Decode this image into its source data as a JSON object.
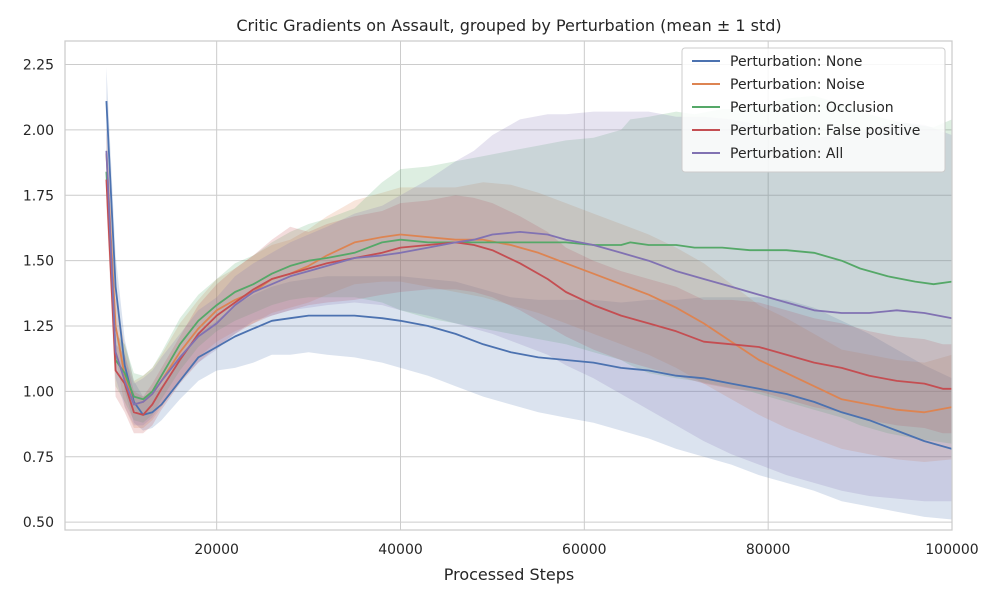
{
  "chart_data": {
    "type": "line",
    "title": "Critic Gradients on Assault, grouped by Perturbation (mean ± 1 std)",
    "xlabel": "Processed Steps",
    "ylabel": "",
    "xlim": [
      3500,
      100000
    ],
    "ylim": [
      0.47,
      2.34
    ],
    "xticks": [
      20000,
      40000,
      60000,
      80000,
      100000
    ],
    "yticks": [
      0.5,
      0.75,
      1.0,
      1.25,
      1.5,
      1.75,
      2.0,
      2.25
    ],
    "grid": true,
    "legend_position": "top-right",
    "series": [
      {
        "name": "Perturbation: None",
        "color": "#4c72b0",
        "x": [
          8000,
          9000,
          10000,
          11000,
          12000,
          13000,
          14000,
          16000,
          18000,
          20000,
          22000,
          24000,
          26000,
          28000,
          30000,
          32000,
          35000,
          38000,
          40000,
          43000,
          46000,
          49000,
          52000,
          55000,
          58000,
          61000,
          64000,
          67000,
          70000,
          73000,
          76000,
          79000,
          82000,
          85000,
          88000,
          91000,
          94000,
          97000,
          100000
        ],
        "y": [
          2.11,
          1.4,
          1.1,
          0.96,
          0.91,
          0.92,
          0.95,
          1.04,
          1.13,
          1.17,
          1.21,
          1.24,
          1.27,
          1.28,
          1.29,
          1.29,
          1.29,
          1.28,
          1.27,
          1.25,
          1.22,
          1.18,
          1.15,
          1.13,
          1.12,
          1.11,
          1.09,
          1.08,
          1.06,
          1.05,
          1.03,
          1.01,
          0.99,
          0.96,
          0.92,
          0.89,
          0.85,
          0.81,
          0.78
        ],
        "lower": [
          1.98,
          1.28,
          1.0,
          0.88,
          0.85,
          0.86,
          0.89,
          0.97,
          1.04,
          1.08,
          1.09,
          1.11,
          1.14,
          1.14,
          1.15,
          1.14,
          1.13,
          1.11,
          1.09,
          1.06,
          1.02,
          0.98,
          0.95,
          0.92,
          0.9,
          0.88,
          0.85,
          0.82,
          0.78,
          0.75,
          0.72,
          0.68,
          0.65,
          0.62,
          0.58,
          0.56,
          0.54,
          0.52,
          0.51
        ],
        "upper": [
          2.24,
          1.52,
          1.2,
          1.04,
          0.98,
          0.99,
          1.02,
          1.12,
          1.22,
          1.27,
          1.33,
          1.37,
          1.4,
          1.42,
          1.43,
          1.44,
          1.44,
          1.44,
          1.44,
          1.43,
          1.42,
          1.39,
          1.36,
          1.35,
          1.35,
          1.35,
          1.34,
          1.35,
          1.35,
          1.36,
          1.36,
          1.36,
          1.35,
          1.32,
          1.27,
          1.22,
          1.16,
          1.1,
          1.05
        ]
      },
      {
        "name": "Perturbation: Noise",
        "color": "#dd8452",
        "x": [
          8000,
          9000,
          10000,
          11000,
          12000,
          13000,
          14000,
          16000,
          18000,
          20000,
          22000,
          24000,
          26000,
          28000,
          30000,
          32000,
          35000,
          38000,
          40000,
          43000,
          46000,
          49000,
          52000,
          55000,
          58000,
          61000,
          64000,
          67000,
          70000,
          73000,
          76000,
          79000,
          82000,
          85000,
          88000,
          91000,
          94000,
          97000,
          100000
        ],
        "y": [
          1.91,
          1.25,
          1.06,
          0.95,
          0.96,
          0.99,
          1.04,
          1.15,
          1.24,
          1.31,
          1.35,
          1.38,
          1.43,
          1.45,
          1.48,
          1.52,
          1.57,
          1.59,
          1.6,
          1.59,
          1.58,
          1.58,
          1.56,
          1.53,
          1.49,
          1.45,
          1.41,
          1.37,
          1.32,
          1.26,
          1.19,
          1.12,
          1.07,
          1.02,
          0.97,
          0.95,
          0.93,
          0.92,
          0.94
        ],
        "lower": [
          1.81,
          1.14,
          0.94,
          0.86,
          0.86,
          0.89,
          0.94,
          1.04,
          1.13,
          1.19,
          1.23,
          1.26,
          1.3,
          1.32,
          1.34,
          1.37,
          1.41,
          1.42,
          1.42,
          1.4,
          1.38,
          1.36,
          1.33,
          1.3,
          1.26,
          1.22,
          1.18,
          1.14,
          1.09,
          1.03,
          0.97,
          0.91,
          0.86,
          0.82,
          0.78,
          0.76,
          0.74,
          0.73,
          0.74
        ],
        "upper": [
          2.01,
          1.36,
          1.18,
          1.04,
          1.06,
          1.09,
          1.14,
          1.26,
          1.35,
          1.43,
          1.47,
          1.52,
          1.56,
          1.58,
          1.62,
          1.67,
          1.73,
          1.76,
          1.78,
          1.78,
          1.78,
          1.8,
          1.79,
          1.76,
          1.72,
          1.68,
          1.64,
          1.6,
          1.55,
          1.49,
          1.41,
          1.33,
          1.28,
          1.22,
          1.16,
          1.14,
          1.12,
          1.11,
          1.14
        ]
      },
      {
        "name": "Perturbation: Occlusion",
        "color": "#55a868",
        "x": [
          8000,
          9000,
          10000,
          11000,
          12000,
          13000,
          14000,
          16000,
          18000,
          20000,
          22000,
          24000,
          26000,
          28000,
          30000,
          32000,
          35000,
          38000,
          40000,
          43000,
          46000,
          49000,
          52000,
          55000,
          58000,
          61000,
          64000,
          65000,
          67000,
          70000,
          72000,
          75000,
          78000,
          80000,
          82000,
          85000,
          88000,
          90000,
          93000,
          96000,
          98000,
          100000
        ],
        "y": [
          1.84,
          1.12,
          1.07,
          0.98,
          0.97,
          1.0,
          1.06,
          1.18,
          1.27,
          1.33,
          1.38,
          1.41,
          1.45,
          1.48,
          1.5,
          1.51,
          1.53,
          1.57,
          1.58,
          1.57,
          1.57,
          1.57,
          1.57,
          1.57,
          1.57,
          1.56,
          1.56,
          1.57,
          1.56,
          1.56,
          1.55,
          1.55,
          1.54,
          1.54,
          1.54,
          1.53,
          1.5,
          1.47,
          1.44,
          1.42,
          1.41,
          1.42
        ],
        "lower": [
          1.74,
          1.02,
          0.96,
          0.89,
          0.88,
          0.91,
          0.97,
          1.08,
          1.17,
          1.23,
          1.27,
          1.3,
          1.33,
          1.35,
          1.36,
          1.36,
          1.36,
          1.34,
          1.31,
          1.28,
          1.26,
          1.24,
          1.22,
          1.2,
          1.18,
          1.15,
          1.12,
          1.1,
          1.07,
          1.05,
          1.04,
          1.02,
          1.0,
          0.98,
          0.96,
          0.93,
          0.9,
          0.87,
          0.84,
          0.82,
          0.81,
          0.8
        ],
        "upper": [
          1.94,
          1.22,
          1.18,
          1.07,
          1.06,
          1.09,
          1.15,
          1.28,
          1.37,
          1.43,
          1.49,
          1.52,
          1.57,
          1.61,
          1.64,
          1.66,
          1.7,
          1.8,
          1.85,
          1.86,
          1.88,
          1.9,
          1.92,
          1.94,
          1.96,
          1.97,
          2.0,
          2.04,
          2.05,
          2.07,
          2.06,
          2.08,
          2.08,
          2.1,
          2.12,
          2.13,
          2.1,
          2.07,
          2.04,
          2.02,
          2.01,
          2.04
        ]
      },
      {
        "name": "Perturbation: False positive",
        "color": "#c44e52",
        "x": [
          8000,
          9000,
          10000,
          11000,
          12000,
          13000,
          14000,
          16000,
          18000,
          20000,
          22000,
          24000,
          26000,
          28000,
          30000,
          32000,
          35000,
          38000,
          40000,
          43000,
          46000,
          48000,
          50000,
          53000,
          56000,
          58000,
          61000,
          64000,
          67000,
          70000,
          73000,
          76000,
          79000,
          82000,
          85000,
          88000,
          91000,
          94000,
          97000,
          99000,
          100000
        ],
        "y": [
          1.81,
          1.08,
          1.03,
          0.92,
          0.91,
          0.95,
          1.01,
          1.12,
          1.22,
          1.29,
          1.34,
          1.39,
          1.43,
          1.45,
          1.47,
          1.49,
          1.51,
          1.53,
          1.55,
          1.56,
          1.57,
          1.56,
          1.54,
          1.49,
          1.43,
          1.38,
          1.33,
          1.29,
          1.26,
          1.23,
          1.19,
          1.18,
          1.17,
          1.14,
          1.11,
          1.09,
          1.06,
          1.04,
          1.03,
          1.01,
          1.01
        ],
        "lower": [
          1.71,
          0.98,
          0.92,
          0.84,
          0.84,
          0.87,
          0.93,
          1.03,
          1.11,
          1.17,
          1.22,
          1.26,
          1.29,
          1.31,
          1.33,
          1.34,
          1.35,
          1.37,
          1.38,
          1.39,
          1.39,
          1.38,
          1.36,
          1.31,
          1.25,
          1.21,
          1.16,
          1.12,
          1.09,
          1.06,
          1.03,
          1.01,
          1.0,
          0.97,
          0.94,
          0.92,
          0.89,
          0.87,
          0.86,
          0.84,
          0.84
        ],
        "upper": [
          1.91,
          1.18,
          1.14,
          1.0,
          0.98,
          1.03,
          1.09,
          1.21,
          1.33,
          1.41,
          1.47,
          1.52,
          1.58,
          1.63,
          1.61,
          1.64,
          1.67,
          1.69,
          1.72,
          1.73,
          1.75,
          1.74,
          1.72,
          1.67,
          1.61,
          1.55,
          1.5,
          1.46,
          1.43,
          1.4,
          1.35,
          1.35,
          1.34,
          1.31,
          1.28,
          1.26,
          1.23,
          1.21,
          1.2,
          1.18,
          1.18
        ]
      },
      {
        "name": "Perturbation: All",
        "color": "#8172b2",
        "x": [
          8000,
          9000,
          10000,
          11000,
          12000,
          13000,
          14000,
          16000,
          18000,
          20000,
          22000,
          24000,
          26000,
          28000,
          30000,
          32000,
          35000,
          38000,
          40000,
          43000,
          46000,
          48000,
          50000,
          53000,
          56000,
          58000,
          61000,
          64000,
          67000,
          70000,
          73000,
          76000,
          79000,
          82000,
          85000,
          88000,
          91000,
          94000,
          97000,
          100000
        ],
        "y": [
          1.92,
          1.15,
          1.04,
          0.95,
          0.96,
          0.99,
          1.04,
          1.13,
          1.21,
          1.26,
          1.33,
          1.38,
          1.41,
          1.44,
          1.46,
          1.48,
          1.51,
          1.52,
          1.53,
          1.55,
          1.57,
          1.58,
          1.6,
          1.61,
          1.6,
          1.58,
          1.56,
          1.53,
          1.5,
          1.46,
          1.43,
          1.4,
          1.37,
          1.34,
          1.31,
          1.3,
          1.3,
          1.31,
          1.3,
          1.28
        ],
        "lower": [
          1.82,
          1.05,
          0.94,
          0.87,
          0.87,
          0.9,
          0.95,
          1.04,
          1.11,
          1.16,
          1.22,
          1.27,
          1.29,
          1.31,
          1.32,
          1.33,
          1.34,
          1.33,
          1.31,
          1.29,
          1.26,
          1.24,
          1.22,
          1.18,
          1.14,
          1.1,
          1.05,
          0.99,
          0.93,
          0.87,
          0.81,
          0.76,
          0.72,
          0.68,
          0.65,
          0.62,
          0.6,
          0.59,
          0.58,
          0.58
        ],
        "upper": [
          2.02,
          1.25,
          1.14,
          1.03,
          1.05,
          1.08,
          1.13,
          1.22,
          1.31,
          1.36,
          1.44,
          1.49,
          1.53,
          1.57,
          1.6,
          1.63,
          1.68,
          1.71,
          1.75,
          1.81,
          1.88,
          1.92,
          1.98,
          2.04,
          2.06,
          2.06,
          2.07,
          2.07,
          2.07,
          2.05,
          2.05,
          2.04,
          2.02,
          2.0,
          1.97,
          1.98,
          2.0,
          2.03,
          2.02,
          1.98
        ]
      }
    ]
  }
}
